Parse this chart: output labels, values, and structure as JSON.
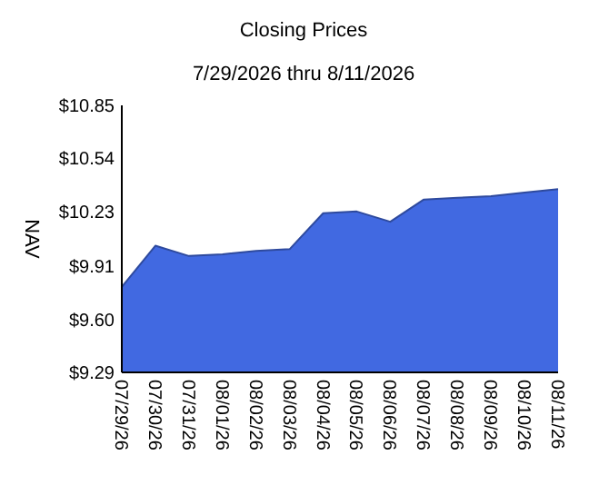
{
  "chart_data": {
    "type": "area",
    "title": "Closing Prices",
    "subtitle": "7/29/2026 thru 8/11/2026",
    "ylabel": "NAV",
    "categories": [
      "07/29/26",
      "07/30/26",
      "07/31/26",
      "08/01/26",
      "08/02/26",
      "08/03/26",
      "08/04/26",
      "08/05/26",
      "08/06/26",
      "08/07/26",
      "08/08/26",
      "08/09/26",
      "08/10/26",
      "08/11/26"
    ],
    "series": [
      {
        "color": "#4169e1",
        "values": [
          9.79,
          10.03,
          9.97,
          9.98,
          10.0,
          10.01,
          10.22,
          10.23,
          10.17,
          10.3,
          10.31,
          10.32,
          10.34,
          10.36
        ]
      }
    ],
    "ylim": [
      9.29,
      10.85
    ],
    "yticks": [
      {
        "value": 9.29,
        "label": "$9.29"
      },
      {
        "value": 9.6,
        "label": "$9.60"
      },
      {
        "value": 9.91,
        "label": "$9.91"
      },
      {
        "value": 10.23,
        "label": "$10.23"
      },
      {
        "value": 10.54,
        "label": "$10.54"
      },
      {
        "value": 10.85,
        "label": "$10.85"
      }
    ],
    "grid": false
  }
}
